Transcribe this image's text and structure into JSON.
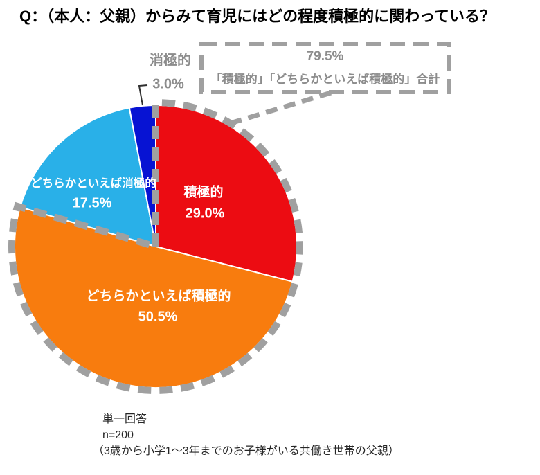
{
  "title": "Q：（本人：父親）からみて育児にはどの程度積極的に関わっている？",
  "callout": {
    "total_value": "79.5%",
    "total_label": "「積極的」「どちらかといえば積極的」合計"
  },
  "chart_data": {
    "type": "pie",
    "categories": [
      "積極的",
      "どちらかといえば積極的",
      "どちらかといえば消極的",
      "消極的"
    ],
    "values": [
      29.0,
      50.5,
      17.5,
      3.0
    ],
    "unit": "%",
    "start_angle_deg": 0,
    "direction": "clockwise",
    "slices": [
      {
        "label": "積極的",
        "value": 29.0,
        "display": "29.0%",
        "color": "#EC0C12",
        "label_color": "#FFFFFF",
        "label_position": "inside"
      },
      {
        "label": "どちらかといえば積極的",
        "value": 50.5,
        "display": "50.5%",
        "color": "#F87C0E",
        "label_color": "#FFFFFF",
        "label_position": "inside"
      },
      {
        "label": "どちらかといえば消極的",
        "value": 17.5,
        "display": "17.5%",
        "color": "#29B0E8",
        "label_color": "#FFFFFF",
        "label_position": "inside"
      },
      {
        "label": "消極的",
        "value": 3.0,
        "display": "3.0%",
        "color": "#0713D3",
        "label_color": "#8C8C8C",
        "label_position": "outside"
      }
    ],
    "highlight": {
      "slice_labels": [
        "積極的",
        "どちらかといえば積極的"
      ],
      "combined_value": "79.5%",
      "style": "gray-dashed-outline"
    },
    "legend": "none",
    "grid": false
  },
  "footnote": {
    "answer_type": "単一回答",
    "sample_size": "n=200",
    "sample_description": "（3歳から小学1～3年までのお子様がいる共働き世帯の父親）"
  },
  "colors": {
    "dash_gray": "#A0A0A0",
    "note_gray": "#8C8C8C",
    "leader_dark": "#303030",
    "slice_separator": "#FFFFFF"
  }
}
